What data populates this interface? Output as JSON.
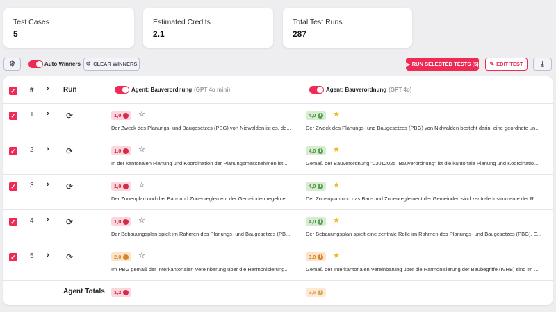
{
  "stats": [
    {
      "label": "Test Cases",
      "value": "5"
    },
    {
      "label": "Estimated Credits",
      "value": "2.1"
    },
    {
      "label": "Total Test Runs",
      "value": "287"
    }
  ],
  "toolbar": {
    "auto_winners_label": "Auto Winners",
    "clear_winners_label": "CLEAR WINNERS",
    "run_selected_label": "RUN SELECTED TESTS (5)",
    "edit_test_label": "EDIT TEST",
    "accent_color": "#ef2b55"
  },
  "table": {
    "headers": {
      "number": "#",
      "run": "Run"
    },
    "agents": [
      {
        "name": "Agent: Bauverordnung",
        "model": "(GPT 4o mini)"
      },
      {
        "name": "Agent: Bauverordnung",
        "model": "(GPT 4o)"
      }
    ],
    "rows": [
      {
        "number": "1",
        "a1_score": "1,0",
        "a1_text": "Der Zweck des Planungs- und Baugesetzes (PBG) von Nidwalden ist es, de...",
        "a2_score": "4,0",
        "a2_text": "Der Zweck des Planungs- und Baugesetzes (PBG) von Nidwalden besteht darin, eine geordnete un..."
      },
      {
        "number": "2",
        "a1_score": "1,0",
        "a1_text": "In der kantonalen Planung und Koordination der Planungsmassnahmen ist...",
        "a2_score": "4,0",
        "a2_text": "Gemäß der Bauverordnung \"03012025_Bauverordnung\" ist die kantonale Planung und Koordinatio..."
      },
      {
        "number": "3",
        "a1_score": "1,0",
        "a1_text": "Der Zonenplan und das Bau- und Zonenreglement der Gemeinden regeln e...",
        "a2_score": "4,0",
        "a2_text": "Der Zonenplan und das Bau- und Zonenreglement der Gemeinden sind zentrale Instrumente der R..."
      },
      {
        "number": "4",
        "a1_score": "1,0",
        "a1_text": "Der Bebauungsplan spielt im Rahmen des Planungs- und Baugesetzes (PB...",
        "a2_score": "4,0",
        "a2_text": "Der Bebauungsplan spielt eine zentrale Rolle im Rahmen des Planungs- und Baugesetzes (PBG). E..."
      },
      {
        "number": "5",
        "a1_score": "2,0",
        "a1_text": "Im PBG gemäß der Interkantonalen Vereinbarung über die Harmonisierung...",
        "a2_score": "3,0",
        "a2_text": "Gemäß der Interkantonalen Vereinbarung über die Harmonisierung der Baubegriffe (IVHB) sind im ..."
      }
    ],
    "totals": {
      "label": "Agent Totals",
      "a1": "1,2",
      "a2": "3,8"
    }
  }
}
